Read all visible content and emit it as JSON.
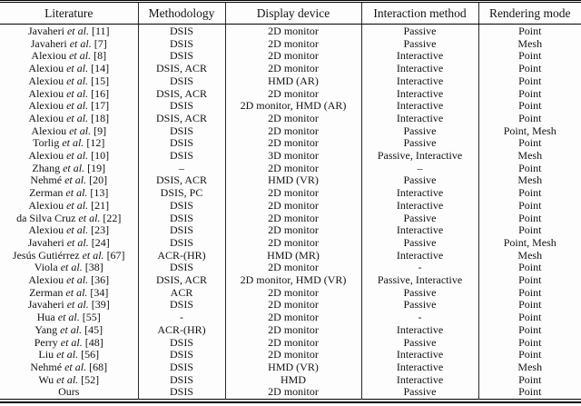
{
  "table": {
    "headers": [
      "Literature",
      "Methodology",
      "Display device",
      "Interaction method",
      "Rendering mode"
    ],
    "rows": [
      {
        "lit": [
          "Javaheri",
          "et al.",
          "[11]"
        ],
        "methodology": "DSIS",
        "display": "2D monitor",
        "interaction": "Passive",
        "rendering": "Point"
      },
      {
        "lit": [
          "Javaheri",
          "et al.",
          "[7]"
        ],
        "methodology": "DSIS",
        "display": "2D monitor",
        "interaction": "Passive",
        "rendering": "Mesh"
      },
      {
        "lit": [
          "Alexiou",
          "et al.",
          "[8]"
        ],
        "methodology": "DSIS",
        "display": "2D monitor",
        "interaction": "Interactive",
        "rendering": "Point"
      },
      {
        "lit": [
          "Alexiou",
          "et al.",
          "[14]"
        ],
        "methodology": "DSIS, ACR",
        "display": "2D monitor",
        "interaction": "Interactive",
        "rendering": "Point"
      },
      {
        "lit": [
          "Alexiou",
          "et al.",
          "[15]"
        ],
        "methodology": "DSIS",
        "display": "HMD (AR)",
        "interaction": "Interactive",
        "rendering": "Point"
      },
      {
        "lit": [
          "Alexiou",
          "et al.",
          "[16]"
        ],
        "methodology": "DSIS, ACR",
        "display": "2D monitor",
        "interaction": "Interactive",
        "rendering": "Point"
      },
      {
        "lit": [
          "Alexiou",
          "et al.",
          "[17]"
        ],
        "methodology": "DSIS",
        "display": "2D monitor, HMD (AR)",
        "interaction": "Interactive",
        "rendering": "Point"
      },
      {
        "lit": [
          "Alexiou",
          "et al.",
          "[18]"
        ],
        "methodology": "DSIS, ACR",
        "display": "2D monitor",
        "interaction": "Interactive",
        "rendering": "Point"
      },
      {
        "lit": [
          "Alexiou",
          "et al.",
          "[9]"
        ],
        "methodology": "DSIS",
        "display": "2D monitor",
        "interaction": "Passive",
        "rendering": "Point, Mesh"
      },
      {
        "lit": [
          "Torlig",
          "et al.",
          "[12]"
        ],
        "methodology": "DSIS",
        "display": "2D monitor",
        "interaction": "Passive",
        "rendering": "Point"
      },
      {
        "lit": [
          "Alexiou",
          "et al.",
          "[10]"
        ],
        "methodology": "DSIS",
        "display": "3D monitor",
        "interaction": "Passive, Interactive",
        "rendering": "Mesh"
      },
      {
        "lit": [
          "Zhang",
          "et al.",
          "[19]"
        ],
        "methodology": "–",
        "display": "2D monitor",
        "interaction": "–",
        "rendering": "Point"
      },
      {
        "lit": [
          "Nehmé",
          "et al.",
          "[20]"
        ],
        "methodology": "DSIS, ACR",
        "display": "HMD (VR)",
        "interaction": "Passive",
        "rendering": "Mesh"
      },
      {
        "lit": [
          "Zerman",
          "et al.",
          "[13]"
        ],
        "methodology": "DSIS, PC",
        "display": "2D monitor",
        "interaction": "Interactive",
        "rendering": "Point"
      },
      {
        "lit": [
          "Alexiou",
          "et al.",
          "[21]"
        ],
        "methodology": "DSIS",
        "display": "2D monitor",
        "interaction": "Interactive",
        "rendering": "Point"
      },
      {
        "lit": [
          "da Silva Cruz",
          "et al.",
          "[22]"
        ],
        "methodology": "DSIS",
        "display": "2D monitor",
        "interaction": "Passive",
        "rendering": "Point"
      },
      {
        "lit": [
          "Alexiou",
          "et al.",
          "[23]"
        ],
        "methodology": "DSIS",
        "display": "2D monitor",
        "interaction": "Interactive",
        "rendering": "Point"
      },
      {
        "lit": [
          "Javaheri",
          "et al.",
          "[24]"
        ],
        "methodology": "DSIS",
        "display": "2D monitor",
        "interaction": "Passive",
        "rendering": "Point, Mesh"
      },
      {
        "lit": [
          "Jesús Gutiérrez",
          "et al.",
          "[67]"
        ],
        "methodology": "ACR-(HR)",
        "display": "HMD (MR)",
        "interaction": "Interactive",
        "rendering": "Mesh"
      },
      {
        "lit": [
          "Viola",
          "et al.",
          "[38]"
        ],
        "methodology": "DSIS",
        "display": "2D monitor",
        "interaction": "-",
        "rendering": "Point"
      },
      {
        "lit": [
          "Alexiou",
          "et al.",
          "[36]"
        ],
        "methodology": "DSIS, ACR",
        "display": "2D monitor, HMD (VR)",
        "interaction": "Passive, Interactive",
        "rendering": "Point"
      },
      {
        "lit": [
          "Zerman",
          "et al.",
          "[34]"
        ],
        "methodology": "ACR",
        "display": "2D monitor",
        "interaction": "Passive",
        "rendering": "Point"
      },
      {
        "lit": [
          "Javaheri",
          "et al.",
          "[39]"
        ],
        "methodology": "DSIS",
        "display": "2D monitor",
        "interaction": "Passive",
        "rendering": "Point"
      },
      {
        "lit": [
          "Hua",
          "et al.",
          "[55]"
        ],
        "methodology": "-",
        "display": "2D monitor",
        "interaction": "-",
        "rendering": "Point"
      },
      {
        "lit": [
          "Yang",
          "et al.",
          "[45]"
        ],
        "methodology": "ACR-(HR)",
        "display": "2D monitor",
        "interaction": "Interactive",
        "rendering": "Point"
      },
      {
        "lit": [
          "Perry",
          "et al.",
          "[48]"
        ],
        "methodology": "DSIS",
        "display": "2D monitor",
        "interaction": "Passive",
        "rendering": "Point"
      },
      {
        "lit": [
          "Liu",
          "et al.",
          "[56]"
        ],
        "methodology": "DSIS",
        "display": "2D monitor",
        "interaction": "Interactive",
        "rendering": "Point"
      },
      {
        "lit": [
          "Nehmé",
          "et al.",
          "[68]"
        ],
        "methodology": "DSIS",
        "display": "HMD (VR)",
        "interaction": "Interactive",
        "rendering": "Mesh"
      },
      {
        "lit": [
          "Wu",
          "et al.",
          "[52]"
        ],
        "methodology": "DSIS",
        "display": "HMD",
        "interaction": "Interactive",
        "rendering": "Point"
      },
      {
        "lit": [
          "Ours",
          "",
          ""
        ],
        "methodology": "DSIS",
        "display": "2D monitor",
        "interaction": "Passive",
        "rendering": "Point"
      }
    ]
  }
}
